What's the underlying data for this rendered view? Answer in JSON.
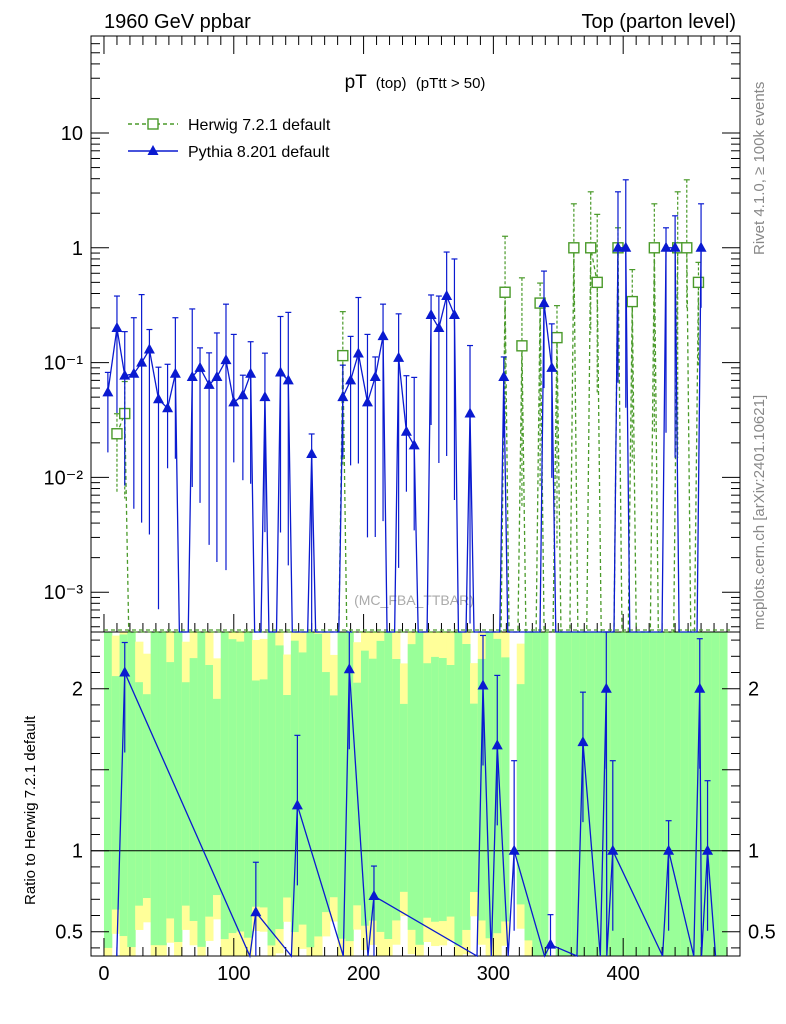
{
  "header": {
    "left": "1960 GeV ppbar",
    "right": "Top (parton level)"
  },
  "side_labels": {
    "rivet": "Rivet 4.1.0, ≥ 100k events",
    "mcplots": "mcplots.cern.ch [arXiv:2401.10621]"
  },
  "watermark": "(MC_FBA_TTBAR)",
  "chart_data": {
    "type": "line",
    "title_main": "pT",
    "title_sub": "(top)",
    "title_cut": "(pTtt > 50)",
    "xlim": [
      -10,
      490
    ],
    "main": {
      "yscale": "log",
      "ylim": [
        0.00045,
        70
      ],
      "yticks": [
        "10⁻³",
        "10⁻²",
        "10⁻¹",
        "1",
        "10"
      ],
      "ytick_values": [
        0.001,
        0.01,
        0.1,
        1,
        10
      ]
    },
    "ratio": {
      "ylabel": "Ratio to Herwig 7.2.1 default",
      "ylim": [
        0.35,
        2.35
      ],
      "yticks": [
        "0.5",
        "1",
        "2"
      ],
      "ytick_values": [
        0.5,
        1,
        2
      ],
      "reference": 1
    },
    "xticks": [
      "0",
      "100",
      "200",
      "300",
      "400"
    ],
    "xtick_values": [
      0,
      100,
      200,
      300,
      400
    ],
    "legend": [
      {
        "name": "Herwig 7.2.1 default",
        "color": "#4a9a2a",
        "marker": "open-square",
        "style": "dashed"
      },
      {
        "name": "Pythia 8.201 default",
        "color": "#0a1ad0",
        "marker": "filled-triangle",
        "style": "solid"
      }
    ],
    "series": [
      {
        "name": "Herwig 7.2.1 default",
        "x": [
          10,
          16,
          184,
          309,
          322,
          336,
          349,
          362,
          375,
          380,
          396,
          407,
          424,
          442,
          449,
          458
        ],
        "y": [
          0.024,
          0.036,
          0.115,
          0.41,
          0.14,
          0.33,
          0.165,
          1.0,
          1.0,
          0.5,
          1.0,
          0.34,
          1.0,
          1.0,
          1.0,
          0.5
        ]
      },
      {
        "name": "Pythia 8.201 default",
        "x": [
          3,
          10,
          16,
          23,
          29,
          35,
          42,
          49,
          55,
          68,
          74,
          81,
          87,
          94,
          100,
          107,
          113,
          124,
          136,
          142,
          160,
          184,
          190,
          196,
          203,
          209,
          215,
          227,
          233,
          239,
          252,
          258,
          264,
          270,
          282,
          308,
          339,
          345,
          396,
          402,
          433,
          440,
          460
        ],
        "y": [
          0.055,
          0.2,
          0.077,
          0.08,
          0.1,
          0.13,
          0.048,
          0.04,
          0.08,
          0.075,
          0.09,
          0.064,
          0.075,
          0.105,
          0.045,
          0.052,
          0.08,
          0.05,
          0.082,
          0.07,
          0.016,
          0.05,
          0.07,
          0.12,
          0.045,
          0.075,
          0.17,
          0.11,
          0.025,
          0.019,
          0.26,
          0.2,
          0.38,
          0.26,
          0.036,
          0.075,
          0.33,
          0.09,
          1.0,
          1.0,
          1.0,
          1.0,
          1.0
        ]
      }
    ],
    "ratio_series": {
      "name": "Pythia 8.201 default",
      "x": [
        16,
        117,
        149,
        189,
        208,
        292,
        303,
        316,
        344,
        369,
        387,
        392,
        435,
        459,
        465
      ],
      "y": [
        2.1,
        0.62,
        1.28,
        2.12,
        0.72,
        2.02,
        1.65,
        1.0,
        0.42,
        1.67,
        2.0,
        1.0,
        1.0,
        2.0,
        1.0
      ]
    }
  }
}
